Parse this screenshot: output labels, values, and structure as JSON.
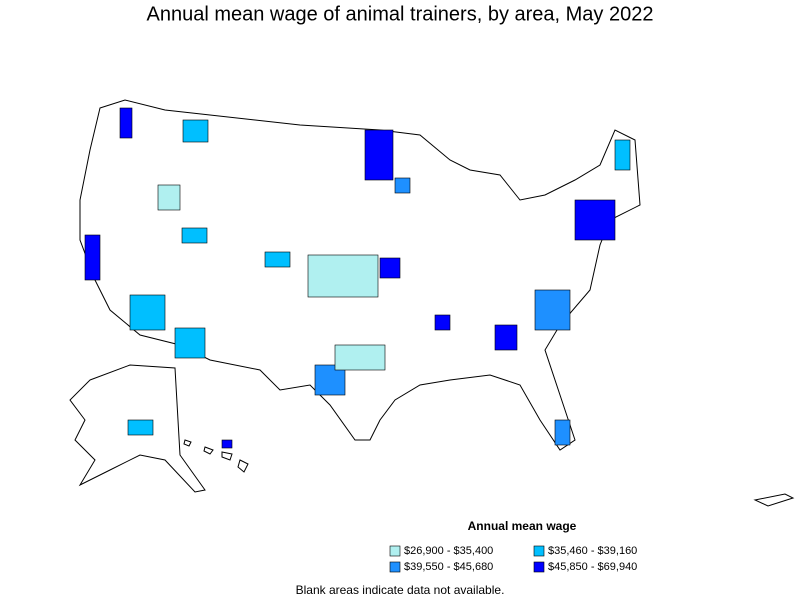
{
  "header": {
    "title": "Annual mean wage of animal trainers, by area, May 2022"
  },
  "legend": {
    "title": "Annual mean wage",
    "items": [
      {
        "label": "$26,900 - $35,400",
        "color": "#b0f0f0"
      },
      {
        "label": "$35,460 - $39,160",
        "color": "#00bfff"
      },
      {
        "label": "$39,550 - $45,680",
        "color": "#1e90ff"
      },
      {
        "label": "$45,850 - $69,940",
        "color": "#0000ff"
      }
    ]
  },
  "footnote": "Blank areas indicate data not available."
}
